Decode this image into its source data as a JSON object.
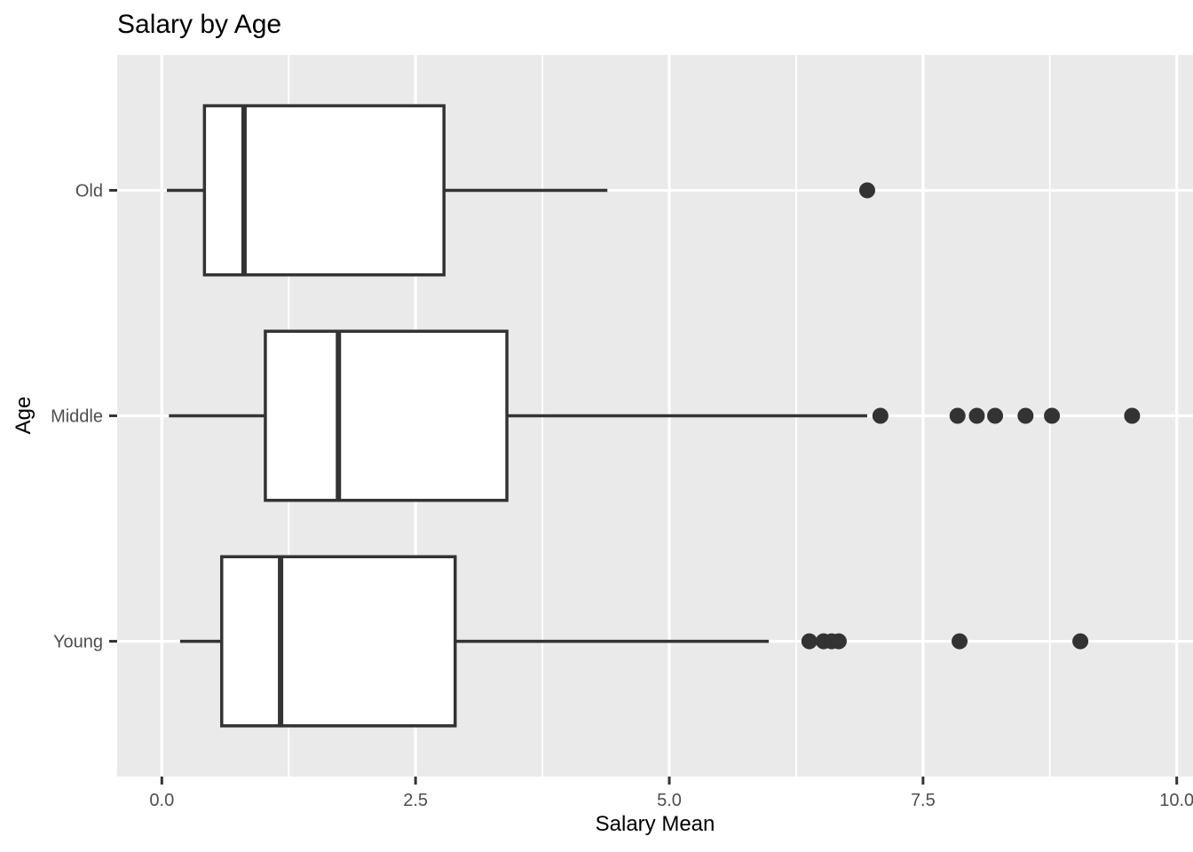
{
  "chart_data": {
    "type": "boxplot",
    "orientation": "horizontal",
    "title": "Salary by Age",
    "xlabel": "Salary Mean",
    "ylabel": "Age",
    "xlim": [
      -0.44,
      10.16
    ],
    "x_major_ticks": [
      0.0,
      2.5,
      5.0,
      7.5,
      10.0
    ],
    "x_tick_labels": [
      "0.0",
      "2.5",
      "5.0",
      "7.5",
      "10.0"
    ],
    "x_minor_gridlines": [
      1.25,
      3.75,
      6.25,
      8.75
    ],
    "grid": "white major+minor vertical lines and major horizontal lines on grey panel",
    "legend": "none",
    "categories_top_to_bottom": [
      "Old",
      "Middle",
      "Young"
    ],
    "series": [
      {
        "category": "Old",
        "min": 0.05,
        "q1": 0.42,
        "median": 0.81,
        "q3": 2.78,
        "max": 4.39,
        "outliers": [
          6.95
        ]
      },
      {
        "category": "Middle",
        "min": 0.07,
        "q1": 1.02,
        "median": 1.74,
        "q3": 3.4,
        "max": 6.95,
        "outliers": [
          7.08,
          7.84,
          8.03,
          8.21,
          8.51,
          8.77,
          9.56
        ]
      },
      {
        "category": "Young",
        "min": 0.18,
        "q1": 0.59,
        "median": 1.17,
        "q3": 2.89,
        "max": 5.98,
        "outliers": [
          6.38,
          6.52,
          6.6,
          6.67,
          7.86,
          9.05
        ]
      }
    ]
  },
  "style": {
    "panel_bg": "#EAEAEA",
    "gridline_color": "#FFFFFF",
    "box_stroke": "#333333",
    "box_fill": "#FFFFFF",
    "median_color": "#333333",
    "whisker_color": "#333333",
    "outlier_color": "#333333",
    "tick_mark_color": "#333333",
    "tick_label_color": "#4D4D4D",
    "title_color": "#000000"
  }
}
